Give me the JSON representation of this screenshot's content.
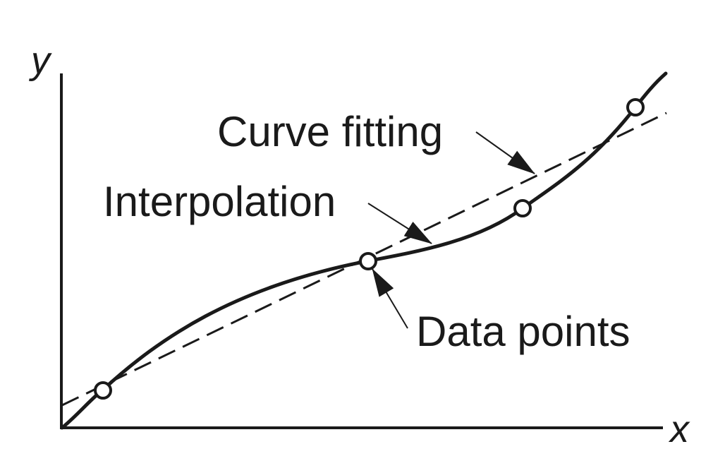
{
  "diagram": {
    "axis_x_label": "x",
    "axis_y_label": "y",
    "labels": {
      "curve_fitting": "Curve fitting",
      "interpolation": "Interpolation",
      "data_points": "Data points"
    },
    "colors": {
      "ink": "#1a1a1a",
      "background": "#ffffff",
      "marker_fill": "#ffffff"
    },
    "curves": {
      "interpolation_style": "solid",
      "curve_fitting_style": "dashed"
    },
    "data_point_count": 4
  }
}
